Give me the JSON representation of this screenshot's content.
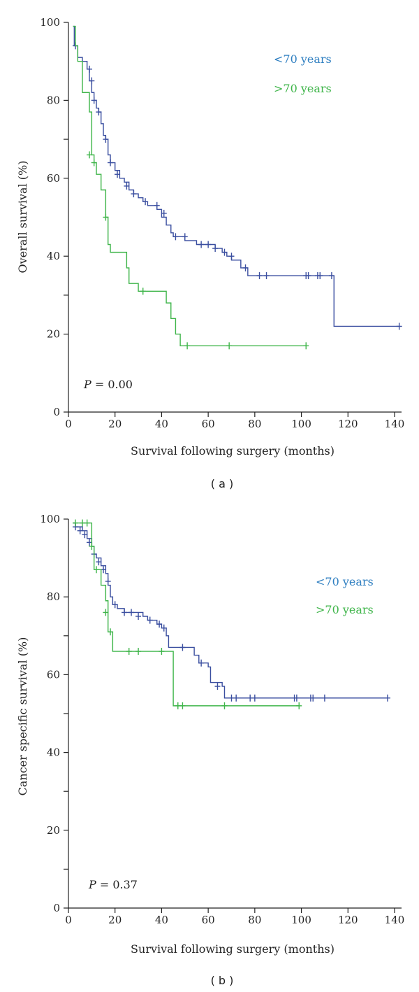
{
  "colors": {
    "under70": "#3b4fa0",
    "over70": "#3fb54a",
    "legend_under70": "#2f7fc1",
    "axis": "#222222"
  },
  "chart_data": [
    {
      "type": "line",
      "panel_label": "( a )",
      "title": "",
      "xlabel": "Survival following surgery (months)",
      "ylabel": "Overall survival (%)",
      "xlim": [
        0,
        143
      ],
      "ylim": [
        0,
        100
      ],
      "x_ticks": [
        0,
        20,
        40,
        60,
        80,
        100,
        120,
        140
      ],
      "y_ticks": [
        0,
        20,
        40,
        60,
        80,
        100
      ],
      "p_label": "P",
      "p_value": " = 0.00",
      "legend": [
        "<70 years",
        ">70 years"
      ],
      "series": [
        {
          "name": "<70 years",
          "color_key": "under70",
          "step_points": [
            [
              2,
              99
            ],
            [
              2.5,
              94
            ],
            [
              4,
              91
            ],
            [
              6,
              90
            ],
            [
              8,
              88
            ],
            [
              9,
              85
            ],
            [
              10,
              82
            ],
            [
              11,
              80
            ],
            [
              12,
              78
            ],
            [
              13,
              77
            ],
            [
              14,
              74
            ],
            [
              15,
              71
            ],
            [
              16,
              70
            ],
            [
              17,
              66
            ],
            [
              18,
              64
            ],
            [
              20,
              62
            ],
            [
              22,
              60
            ],
            [
              24,
              59
            ],
            [
              26,
              57
            ],
            [
              28,
              56
            ],
            [
              30,
              55
            ],
            [
              32,
              54
            ],
            [
              34,
              53
            ],
            [
              36,
              53
            ],
            [
              38,
              52
            ],
            [
              40,
              50
            ],
            [
              42,
              48
            ],
            [
              44,
              46
            ],
            [
              45,
              45
            ],
            [
              48,
              45
            ],
            [
              50,
              44
            ],
            [
              52,
              44
            ],
            [
              55,
              43
            ],
            [
              62,
              43
            ],
            [
              63,
              42
            ],
            [
              66,
              41
            ],
            [
              68,
              40
            ],
            [
              70,
              39
            ],
            [
              74,
              37
            ],
            [
              76,
              37
            ],
            [
              77,
              35
            ],
            [
              114,
              35
            ],
            [
              114,
              22
            ],
            [
              142,
              22
            ]
          ],
          "censors": [
            [
              3,
              94
            ],
            [
              9,
              88
            ],
            [
              10,
              85
            ],
            [
              11,
              80
            ],
            [
              13,
              77
            ],
            [
              16,
              70
            ],
            [
              18,
              64
            ],
            [
              21,
              61
            ],
            [
              25,
              58
            ],
            [
              28,
              56
            ],
            [
              33,
              54
            ],
            [
              38,
              53
            ],
            [
              41,
              51
            ],
            [
              46,
              45
            ],
            [
              50,
              45
            ],
            [
              57,
              43
            ],
            [
              60,
              43
            ],
            [
              63,
              42
            ],
            [
              67,
              41
            ],
            [
              70,
              40
            ],
            [
              76,
              37
            ],
            [
              82,
              35
            ],
            [
              85,
              35
            ],
            [
              102,
              35
            ],
            [
              103,
              35
            ],
            [
              107,
              35
            ],
            [
              108,
              35
            ],
            [
              113,
              35
            ],
            [
              142,
              22
            ]
          ]
        },
        {
          "name": ">70 years",
          "color_key": "over70",
          "step_points": [
            [
              2,
              99
            ],
            [
              3,
              94
            ],
            [
              4,
              90
            ],
            [
              6,
              82
            ],
            [
              8,
              82
            ],
            [
              9,
              77
            ],
            [
              10,
              66
            ],
            [
              11,
              64
            ],
            [
              12,
              61
            ],
            [
              14,
              57
            ],
            [
              16,
              50
            ],
            [
              17,
              43
            ],
            [
              18,
              41
            ],
            [
              24,
              41
            ],
            [
              25,
              37
            ],
            [
              26,
              33
            ],
            [
              30,
              31
            ],
            [
              41,
              31
            ],
            [
              42,
              28
            ],
            [
              44,
              24
            ],
            [
              46,
              20
            ],
            [
              48,
              17
            ],
            [
              102,
              17
            ]
          ],
          "censors": [
            [
              9,
              66
            ],
            [
              11,
              64
            ],
            [
              16,
              50
            ],
            [
              32,
              31
            ],
            [
              51,
              17
            ],
            [
              69,
              17
            ],
            [
              102,
              17
            ]
          ]
        }
      ]
    },
    {
      "type": "line",
      "panel_label": "( b )",
      "title": "",
      "xlabel": "Survival following surgery (months)",
      "ylabel": "Cancer specific survival (%)",
      "xlim": [
        0,
        143
      ],
      "ylim": [
        0,
        100
      ],
      "x_ticks": [
        0,
        20,
        40,
        60,
        80,
        100,
        120,
        140
      ],
      "y_ticks": [
        0,
        20,
        40,
        60,
        80,
        100
      ],
      "p_label": "P",
      "p_value": " = 0.37",
      "legend": [
        "<70 years",
        ">70 years"
      ],
      "series": [
        {
          "name": "<70 years",
          "color_key": "under70",
          "step_points": [
            [
              2,
              99
            ],
            [
              3,
              98
            ],
            [
              6,
              97
            ],
            [
              8,
              95
            ],
            [
              10,
              93
            ],
            [
              11,
              91
            ],
            [
              12,
              90
            ],
            [
              14,
              88
            ],
            [
              16,
              86
            ],
            [
              17,
              83
            ],
            [
              18,
              80
            ],
            [
              19,
              78
            ],
            [
              21,
              77
            ],
            [
              24,
              76
            ],
            [
              26,
              76
            ],
            [
              32,
              75
            ],
            [
              34,
              74
            ],
            [
              38,
              73
            ],
            [
              40,
              72
            ],
            [
              42,
              70
            ],
            [
              43,
              67
            ],
            [
              50,
              67
            ],
            [
              54,
              65
            ],
            [
              56,
              63
            ],
            [
              60,
              62
            ],
            [
              61,
              58
            ],
            [
              63,
              58
            ],
            [
              66,
              57
            ],
            [
              67,
              54
            ],
            [
              137,
              54
            ]
          ],
          "censors": [
            [
              3,
              98
            ],
            [
              5,
              97
            ],
            [
              7,
              96
            ],
            [
              9,
              94
            ],
            [
              11,
              91
            ],
            [
              13,
              89
            ],
            [
              15,
              87
            ],
            [
              17,
              84
            ],
            [
              20,
              78
            ],
            [
              24,
              76
            ],
            [
              27,
              76
            ],
            [
              30,
              75
            ],
            [
              35,
              74
            ],
            [
              39,
              73
            ],
            [
              41,
              72
            ],
            [
              49,
              67
            ],
            [
              57,
              63
            ],
            [
              64,
              57
            ],
            [
              70,
              54
            ],
            [
              72,
              54
            ],
            [
              78,
              54
            ],
            [
              80,
              54
            ],
            [
              97,
              54
            ],
            [
              98,
              54
            ],
            [
              104,
              54
            ],
            [
              105,
              54
            ],
            [
              110,
              54
            ],
            [
              137,
              54
            ]
          ]
        },
        {
          "name": ">70 years",
          "color_key": "over70",
          "step_points": [
            [
              2,
              99
            ],
            [
              9,
              99
            ],
            [
              10,
              93
            ],
            [
              11,
              87
            ],
            [
              14,
              83
            ],
            [
              16,
              79
            ],
            [
              17,
              71
            ],
            [
              19,
              66
            ],
            [
              44,
              66
            ],
            [
              45,
              52
            ],
            [
              99,
              52
            ]
          ],
          "censors": [
            [
              3,
              99
            ],
            [
              6,
              99
            ],
            [
              8,
              99
            ],
            [
              10,
              93
            ],
            [
              12,
              87
            ],
            [
              16,
              76
            ],
            [
              18,
              71
            ],
            [
              26,
              66
            ],
            [
              30,
              66
            ],
            [
              40,
              66
            ],
            [
              47,
              52
            ],
            [
              49,
              52
            ],
            [
              67,
              52
            ],
            [
              99,
              52
            ]
          ]
        }
      ]
    }
  ]
}
